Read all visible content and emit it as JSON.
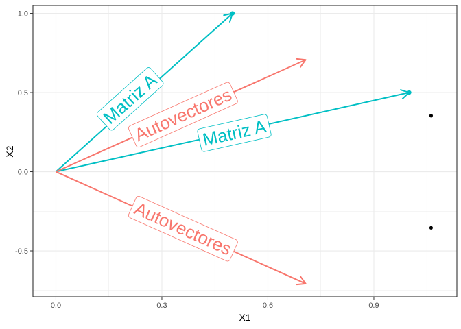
{
  "chart_data": {
    "type": "scatter",
    "title": "",
    "xlabel": "X1",
    "ylabel": "X2",
    "xlim": [
      -0.065,
      1.135
    ],
    "ylim": [
      -0.79,
      1.05
    ],
    "xticks": [
      0.0,
      0.3,
      0.6,
      0.9
    ],
    "xtick_labels": [
      "0.0",
      "0.3",
      "0.6",
      "0.9"
    ],
    "yticks": [
      -0.5,
      0.0,
      0.5,
      1.0
    ],
    "ytick_labels": [
      "-0.5",
      "0.0",
      "0.5",
      "1.0"
    ],
    "grid": true,
    "legend": "none",
    "colors": {
      "matriz": "#00BFC4",
      "autovectores": "#F8766D",
      "points": "#000000"
    },
    "vectors": [
      {
        "group": "matriz",
        "label": "Matriz A",
        "x0": 0,
        "y0": 0,
        "x1": 0.5,
        "y1": 1.0,
        "label_x": 0.21,
        "label_y": 0.46,
        "end_point": true
      },
      {
        "group": "matriz",
        "label": "Matriz A",
        "x0": 0,
        "y0": 0,
        "x1": 1.0,
        "y1": 0.5,
        "label_x": 0.505,
        "label_y": 0.245,
        "end_point": true
      },
      {
        "group": "autovectores",
        "label": "Autovectores",
        "x0": 0,
        "y0": 0,
        "x1": 0.707,
        "y1": 0.707,
        "label_x": 0.36,
        "label_y": 0.36,
        "end_point": false
      },
      {
        "group": "autovectores",
        "label": "Autovectores",
        "x0": 0,
        "y0": 0,
        "x1": 0.707,
        "y1": -0.707,
        "label_x": 0.36,
        "label_y": -0.36,
        "end_point": false
      }
    ],
    "points": [
      {
        "x": 1.062,
        "y": 0.354
      },
      {
        "x": 1.062,
        "y": -0.354
      }
    ]
  }
}
